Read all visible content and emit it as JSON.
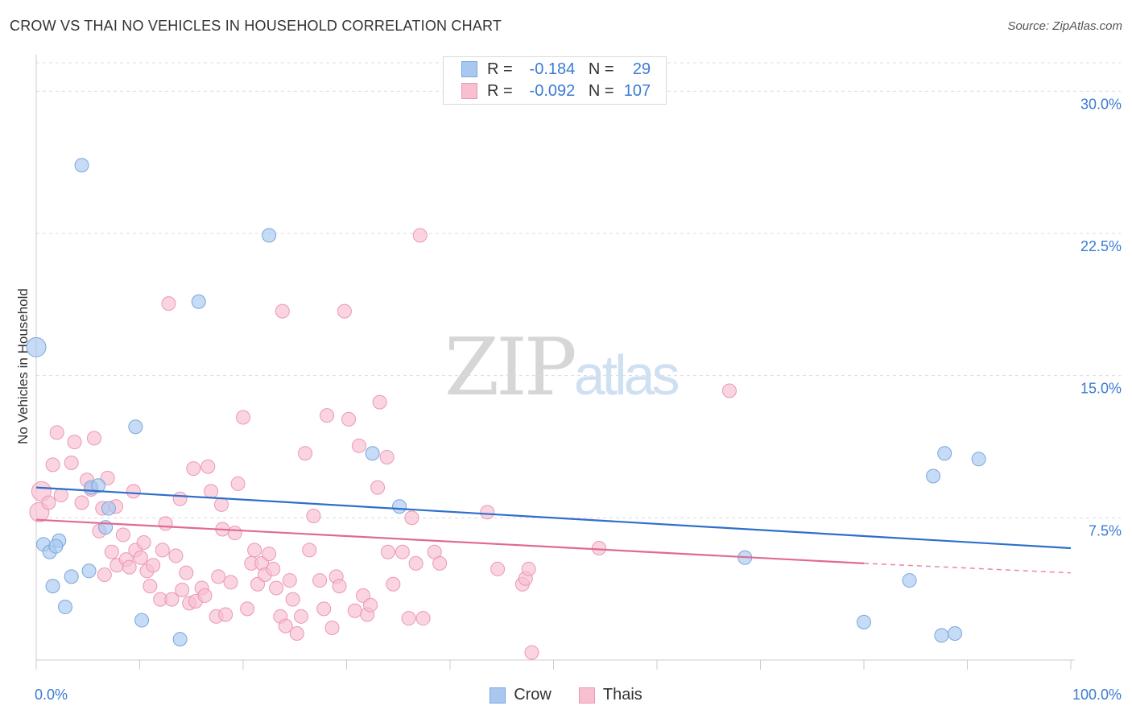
{
  "title": "CROW VS THAI NO VEHICLES IN HOUSEHOLD CORRELATION CHART",
  "source": "Source: ZipAtlas.com",
  "watermark": {
    "zip": "ZIP",
    "atlas": "atlas"
  },
  "legend": {
    "rows": [
      {
        "name": "Crow",
        "r_label": "R =",
        "r_value": "-0.184",
        "n_label": "N =",
        "n_value": "29"
      },
      {
        "name": "Thais",
        "r_label": "R =",
        "r_value": "-0.092",
        "n_label": "N =",
        "n_value": "107"
      }
    ]
  },
  "colors": {
    "crow_fill": "#a8c8f0",
    "crow_stroke": "#7aa7dc",
    "crow_line": "#2f6fcb",
    "thais_fill": "#f8bfd1",
    "thais_stroke": "#ec97b3",
    "thais_line": "#e06a94",
    "accent": "#3a7bd5",
    "grid": "#dcdcdc"
  },
  "chart_data": {
    "type": "scatter",
    "title": "CROW VS THAI NO VEHICLES IN HOUSEHOLD CORRELATION CHART",
    "xlabel": "",
    "ylabel": "No Vehicles in Household",
    "xlim": [
      0,
      100
    ],
    "ylim": [
      0,
      31.5
    ],
    "x_tick_labels": {
      "left": "0.0%",
      "right": "100.0%"
    },
    "y_ticks": [
      {
        "value": 7.5,
        "label": "7.5%"
      },
      {
        "value": 15.0,
        "label": "15.0%"
      },
      {
        "value": 22.5,
        "label": "22.5%"
      },
      {
        "value": 30.0,
        "label": "30.0%"
      }
    ],
    "series": [
      {
        "name": "Crow",
        "r": -0.184,
        "n": 29,
        "trend": {
          "x0": 0,
          "y0": 9.1,
          "x1": 100,
          "y1": 5.9
        },
        "points": [
          {
            "x": 0.0,
            "y": 16.5,
            "big": true
          },
          {
            "x": 0.7,
            "y": 6.1
          },
          {
            "x": 1.3,
            "y": 5.7
          },
          {
            "x": 1.6,
            "y": 3.9
          },
          {
            "x": 2.2,
            "y": 6.3
          },
          {
            "x": 2.8,
            "y": 2.8
          },
          {
            "x": 3.4,
            "y": 4.4
          },
          {
            "x": 4.4,
            "y": 26.1
          },
          {
            "x": 5.1,
            "y": 4.7
          },
          {
            "x": 5.3,
            "y": 9.1
          },
          {
            "x": 6.0,
            "y": 9.2
          },
          {
            "x": 6.7,
            "y": 7.0
          },
          {
            "x": 7.0,
            "y": 8.0
          },
          {
            "x": 9.6,
            "y": 12.3
          },
          {
            "x": 10.2,
            "y": 2.1
          },
          {
            "x": 13.9,
            "y": 1.1
          },
          {
            "x": 15.7,
            "y": 18.9
          },
          {
            "x": 22.5,
            "y": 22.4
          },
          {
            "x": 32.5,
            "y": 10.9
          },
          {
            "x": 35.1,
            "y": 8.1
          },
          {
            "x": 68.5,
            "y": 5.4
          },
          {
            "x": 80.0,
            "y": 2.0
          },
          {
            "x": 84.4,
            "y": 4.2
          },
          {
            "x": 86.7,
            "y": 9.7
          },
          {
            "x": 87.5,
            "y": 1.3
          },
          {
            "x": 87.8,
            "y": 10.9
          },
          {
            "x": 88.8,
            "y": 1.4
          },
          {
            "x": 91.1,
            "y": 10.6
          },
          {
            "x": 1.9,
            "y": 6.0
          }
        ]
      },
      {
        "name": "Thais",
        "r": -0.092,
        "n": 107,
        "trend": {
          "x0": 0,
          "y0": 7.4,
          "x1": 80,
          "y1": 5.1,
          "dash_x1": 100,
          "dash_y1": 4.6
        },
        "points": [
          {
            "x": 0.3,
            "y": 7.8,
            "big": true
          },
          {
            "x": 0.5,
            "y": 8.9,
            "big": true
          },
          {
            "x": 1.2,
            "y": 8.3
          },
          {
            "x": 1.6,
            "y": 10.3
          },
          {
            "x": 2.0,
            "y": 12.0
          },
          {
            "x": 2.4,
            "y": 8.7
          },
          {
            "x": 3.4,
            "y": 10.4
          },
          {
            "x": 3.7,
            "y": 11.5
          },
          {
            "x": 4.4,
            "y": 8.3
          },
          {
            "x": 4.9,
            "y": 9.5
          },
          {
            "x": 5.3,
            "y": 9.0
          },
          {
            "x": 5.6,
            "y": 11.7
          },
          {
            "x": 6.1,
            "y": 6.8
          },
          {
            "x": 6.4,
            "y": 8.0
          },
          {
            "x": 6.6,
            "y": 4.5
          },
          {
            "x": 6.9,
            "y": 9.6
          },
          {
            "x": 7.3,
            "y": 5.7
          },
          {
            "x": 7.7,
            "y": 8.1
          },
          {
            "x": 7.8,
            "y": 5.0
          },
          {
            "x": 8.4,
            "y": 6.6
          },
          {
            "x": 8.7,
            "y": 5.3
          },
          {
            "x": 9.0,
            "y": 4.9
          },
          {
            "x": 9.4,
            "y": 8.9
          },
          {
            "x": 9.6,
            "y": 5.8
          },
          {
            "x": 10.1,
            "y": 5.4
          },
          {
            "x": 10.4,
            "y": 6.2
          },
          {
            "x": 10.7,
            "y": 4.7
          },
          {
            "x": 11.0,
            "y": 3.9
          },
          {
            "x": 11.3,
            "y": 5.0
          },
          {
            "x": 12.0,
            "y": 3.2
          },
          {
            "x": 12.2,
            "y": 5.8
          },
          {
            "x": 12.5,
            "y": 7.2
          },
          {
            "x": 12.8,
            "y": 18.8
          },
          {
            "x": 13.1,
            "y": 3.2
          },
          {
            "x": 13.5,
            "y": 5.5
          },
          {
            "x": 13.9,
            "y": 8.5
          },
          {
            "x": 14.1,
            "y": 3.7
          },
          {
            "x": 14.5,
            "y": 4.6
          },
          {
            "x": 14.8,
            "y": 3.0
          },
          {
            "x": 15.2,
            "y": 10.1
          },
          {
            "x": 15.4,
            "y": 3.1
          },
          {
            "x": 16.0,
            "y": 3.8
          },
          {
            "x": 16.3,
            "y": 3.4
          },
          {
            "x": 16.6,
            "y": 10.2
          },
          {
            "x": 16.9,
            "y": 8.9
          },
          {
            "x": 17.4,
            "y": 2.3
          },
          {
            "x": 17.6,
            "y": 4.4
          },
          {
            "x": 17.9,
            "y": 8.2
          },
          {
            "x": 18.3,
            "y": 2.4
          },
          {
            "x": 18.8,
            "y": 4.1
          },
          {
            "x": 19.2,
            "y": 6.7
          },
          {
            "x": 19.5,
            "y": 9.3
          },
          {
            "x": 20.0,
            "y": 12.8
          },
          {
            "x": 20.4,
            "y": 2.7
          },
          {
            "x": 20.8,
            "y": 5.1
          },
          {
            "x": 21.1,
            "y": 5.8
          },
          {
            "x": 21.4,
            "y": 4.0
          },
          {
            "x": 21.8,
            "y": 5.1
          },
          {
            "x": 22.1,
            "y": 4.5
          },
          {
            "x": 22.5,
            "y": 5.6
          },
          {
            "x": 22.9,
            "y": 4.8
          },
          {
            "x": 23.2,
            "y": 3.8
          },
          {
            "x": 23.6,
            "y": 2.3
          },
          {
            "x": 23.8,
            "y": 18.4
          },
          {
            "x": 24.1,
            "y": 1.8
          },
          {
            "x": 24.5,
            "y": 4.2
          },
          {
            "x": 24.8,
            "y": 3.2
          },
          {
            "x": 25.2,
            "y": 1.4
          },
          {
            "x": 25.6,
            "y": 2.3
          },
          {
            "x": 26.0,
            "y": 10.9
          },
          {
            "x": 26.4,
            "y": 5.8
          },
          {
            "x": 26.8,
            "y": 7.6
          },
          {
            "x": 27.4,
            "y": 4.2
          },
          {
            "x": 27.8,
            "y": 2.7
          },
          {
            "x": 28.1,
            "y": 12.9
          },
          {
            "x": 28.6,
            "y": 1.7
          },
          {
            "x": 29.0,
            "y": 4.4
          },
          {
            "x": 29.3,
            "y": 3.9
          },
          {
            "x": 29.8,
            "y": 18.4
          },
          {
            "x": 30.2,
            "y": 12.7
          },
          {
            "x": 30.8,
            "y": 2.6
          },
          {
            "x": 31.2,
            "y": 11.3
          },
          {
            "x": 31.6,
            "y": 3.4
          },
          {
            "x": 32.0,
            "y": 2.4
          },
          {
            "x": 32.3,
            "y": 2.9
          },
          {
            "x": 33.0,
            "y": 9.1
          },
          {
            "x": 33.2,
            "y": 13.6
          },
          {
            "x": 33.9,
            "y": 10.7
          },
          {
            "x": 34.5,
            "y": 4.0
          },
          {
            "x": 35.4,
            "y": 5.7
          },
          {
            "x": 36.0,
            "y": 2.2
          },
          {
            "x": 36.3,
            "y": 7.5
          },
          {
            "x": 36.7,
            "y": 5.1
          },
          {
            "x": 37.1,
            "y": 22.4
          },
          {
            "x": 37.4,
            "y": 2.2
          },
          {
            "x": 38.5,
            "y": 5.7
          },
          {
            "x": 39.0,
            "y": 5.1
          },
          {
            "x": 43.6,
            "y": 7.8
          },
          {
            "x": 44.6,
            "y": 4.8
          },
          {
            "x": 47.0,
            "y": 4.0
          },
          {
            "x": 47.3,
            "y": 4.3
          },
          {
            "x": 47.6,
            "y": 4.8
          },
          {
            "x": 47.9,
            "y": 0.4
          },
          {
            "x": 54.4,
            "y": 5.9
          },
          {
            "x": 67.0,
            "y": 14.2
          },
          {
            "x": 34.0,
            "y": 5.7
          },
          {
            "x": 18.0,
            "y": 6.9
          }
        ]
      }
    ]
  }
}
